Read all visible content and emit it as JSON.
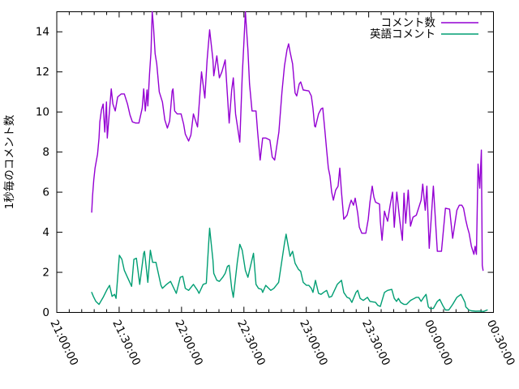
{
  "figure": {
    "background": "#ffffff",
    "border_color": "#000000",
    "text_color": "#000000"
  },
  "chart_data": {
    "type": "line",
    "title": "",
    "xlabel": "",
    "ylabel": "1秒毎のコメント数",
    "ylim": [
      0,
      15
    ],
    "yticks": [
      0,
      2,
      4,
      6,
      8,
      10,
      12,
      14
    ],
    "x_unit": "minutes_after_21:00:00",
    "xlim": [
      0,
      210
    ],
    "xticks": [
      {
        "t": 0,
        "label": "21:00:00"
      },
      {
        "t": 30,
        "label": "21:30:00"
      },
      {
        "t": 60,
        "label": "22:00:00"
      },
      {
        "t": 90,
        "label": "22:30:00"
      },
      {
        "t": 120,
        "label": "23:00:00"
      },
      {
        "t": 150,
        "label": "23:30:00"
      },
      {
        "t": 180,
        "label": "00:00:00"
      },
      {
        "t": 210,
        "label": "00:30:00"
      }
    ],
    "x_minor_tick_every": 6,
    "grid": false,
    "legend_position": "top-right-inside",
    "series": [
      {
        "name": "コメント数",
        "color": "#9400d3",
        "points": [
          [
            16.8,
            5.0
          ],
          [
            17.2,
            5.8
          ],
          [
            17.8,
            6.6
          ],
          [
            18.4,
            7.2
          ],
          [
            19.6,
            7.9
          ],
          [
            20.3,
            8.7
          ],
          [
            20.7,
            9.5
          ],
          [
            21.5,
            10.1
          ],
          [
            22.3,
            10.4
          ],
          [
            23.1,
            9.0
          ],
          [
            23.9,
            10.5
          ],
          [
            24.3,
            8.7
          ],
          [
            25.0,
            9.6
          ],
          [
            26.2,
            11.15
          ],
          [
            27.0,
            10.4
          ],
          [
            28.1,
            10.05
          ],
          [
            29.3,
            10.75
          ],
          [
            31.0,
            10.9
          ],
          [
            32.5,
            10.9
          ],
          [
            34.0,
            10.4
          ],
          [
            35.2,
            9.85
          ],
          [
            36.4,
            9.5
          ],
          [
            38.0,
            9.45
          ],
          [
            39.5,
            9.45
          ],
          [
            41.1,
            10.2
          ],
          [
            41.8,
            11.15
          ],
          [
            42.6,
            10.05
          ],
          [
            43.4,
            11.1
          ],
          [
            43.8,
            10.3
          ],
          [
            44.6,
            11.9
          ],
          [
            45.3,
            13.0
          ],
          [
            45.9,
            15.0
          ],
          [
            46.5,
            14.3
          ],
          [
            47.3,
            12.9
          ],
          [
            48.1,
            12.4
          ],
          [
            49.3,
            11.0
          ],
          [
            50.8,
            10.5
          ],
          [
            52.0,
            9.6
          ],
          [
            53.2,
            9.2
          ],
          [
            54.3,
            9.55
          ],
          [
            55.5,
            11.05
          ],
          [
            55.9,
            11.15
          ],
          [
            56.7,
            10.05
          ],
          [
            57.9,
            9.9
          ],
          [
            59.8,
            9.9
          ],
          [
            61.0,
            9.4
          ],
          [
            61.8,
            8.9
          ],
          [
            63.4,
            8.55
          ],
          [
            64.5,
            8.85
          ],
          [
            65.7,
            9.9
          ],
          [
            67.7,
            9.25
          ],
          [
            69.6,
            12.0
          ],
          [
            71.2,
            10.7
          ],
          [
            72.3,
            12.6
          ],
          [
            73.5,
            14.1
          ],
          [
            75.1,
            12.6
          ],
          [
            75.5,
            11.8
          ],
          [
            77.0,
            12.8
          ],
          [
            78.2,
            11.7
          ],
          [
            79.4,
            12.0
          ],
          [
            81.0,
            12.6
          ],
          [
            82.9,
            9.45
          ],
          [
            84.1,
            11.1
          ],
          [
            84.9,
            11.7
          ],
          [
            86.0,
            9.9
          ],
          [
            88.0,
            8.5
          ],
          [
            89.2,
            11.8
          ],
          [
            90.0,
            13.5
          ],
          [
            90.7,
            15.0
          ],
          [
            91.9,
            13.1
          ],
          [
            92.7,
            11.4
          ],
          [
            93.9,
            10.05
          ],
          [
            95.8,
            10.05
          ],
          [
            96.6,
            9.0
          ],
          [
            97.8,
            7.6
          ],
          [
            99.0,
            8.7
          ],
          [
            100.5,
            8.7
          ],
          [
            102.5,
            8.6
          ],
          [
            103.6,
            7.75
          ],
          [
            104.8,
            7.6
          ],
          [
            106.8,
            9.0
          ],
          [
            108.3,
            11.0
          ],
          [
            109.5,
            12.3
          ],
          [
            110.7,
            13.1
          ],
          [
            111.5,
            13.4
          ],
          [
            112.2,
            13.0
          ],
          [
            113.4,
            12.4
          ],
          [
            114.6,
            10.95
          ],
          [
            115.4,
            10.8
          ],
          [
            116.6,
            11.4
          ],
          [
            117.3,
            11.5
          ],
          [
            118.5,
            11.1
          ],
          [
            121.2,
            11.05
          ],
          [
            122.4,
            10.8
          ],
          [
            123.2,
            10.2
          ],
          [
            124.0,
            9.3
          ],
          [
            124.4,
            9.25
          ],
          [
            125.9,
            9.9
          ],
          [
            127.1,
            10.15
          ],
          [
            127.9,
            10.2
          ],
          [
            129.0,
            9.0
          ],
          [
            129.8,
            8.1
          ],
          [
            130.6,
            7.2
          ],
          [
            131.4,
            6.8
          ],
          [
            132.2,
            6.0
          ],
          [
            133.0,
            5.6
          ],
          [
            134.1,
            6.1
          ],
          [
            135.3,
            6.3
          ],
          [
            136.1,
            7.2
          ],
          [
            136.9,
            6.0
          ],
          [
            137.6,
            5.2
          ],
          [
            138.0,
            4.65
          ],
          [
            139.6,
            4.85
          ],
          [
            140.8,
            5.35
          ],
          [
            141.6,
            5.6
          ],
          [
            142.7,
            5.35
          ],
          [
            143.5,
            5.7
          ],
          [
            144.7,
            4.95
          ],
          [
            145.5,
            4.25
          ],
          [
            146.7,
            3.95
          ],
          [
            148.6,
            3.95
          ],
          [
            149.8,
            4.65
          ],
          [
            150.6,
            5.5
          ],
          [
            151.7,
            6.3
          ],
          [
            152.5,
            5.75
          ],
          [
            153.3,
            5.5
          ],
          [
            155.2,
            5.4
          ],
          [
            155.6,
            4.55
          ],
          [
            156.4,
            3.6
          ],
          [
            157.6,
            5.05
          ],
          [
            158.3,
            4.8
          ],
          [
            159.1,
            4.55
          ],
          [
            160.3,
            5.35
          ],
          [
            161.5,
            6.0
          ],
          [
            162.3,
            4.25
          ],
          [
            163.5,
            6.0
          ],
          [
            165.0,
            4.55
          ],
          [
            166.2,
            3.6
          ],
          [
            167.0,
            5.95
          ],
          [
            167.8,
            4.45
          ],
          [
            169.0,
            6.1
          ],
          [
            170.1,
            4.3
          ],
          [
            171.3,
            4.75
          ],
          [
            172.9,
            4.85
          ],
          [
            175.2,
            5.6
          ],
          [
            176.0,
            6.4
          ],
          [
            177.2,
            5.1
          ],
          [
            178.0,
            6.3
          ],
          [
            179.1,
            3.2
          ],
          [
            181.1,
            6.3
          ],
          [
            183.0,
            3.05
          ],
          [
            185.0,
            3.05
          ],
          [
            186.9,
            5.2
          ],
          [
            188.9,
            5.15
          ],
          [
            190.4,
            3.7
          ],
          [
            192.4,
            5.1
          ],
          [
            193.6,
            5.35
          ],
          [
            194.8,
            5.35
          ],
          [
            195.6,
            5.2
          ],
          [
            196.7,
            4.6
          ],
          [
            197.5,
            4.25
          ],
          [
            198.3,
            3.95
          ],
          [
            199.4,
            3.3
          ],
          [
            200.6,
            2.9
          ],
          [
            201.2,
            3.3
          ],
          [
            201.8,
            2.9
          ],
          [
            202.6,
            7.4
          ],
          [
            203.4,
            6.2
          ],
          [
            204.2,
            8.1
          ],
          [
            204.6,
            2.35
          ],
          [
            205.0,
            2.1
          ]
        ]
      },
      {
        "name": "英語コメント",
        "color": "#009e73",
        "points": [
          [
            16.8,
            1.0
          ],
          [
            17.6,
            0.8
          ],
          [
            18.8,
            0.55
          ],
          [
            20.3,
            0.4
          ],
          [
            22.3,
            0.75
          ],
          [
            24.2,
            1.15
          ],
          [
            25.4,
            1.35
          ],
          [
            26.6,
            0.8
          ],
          [
            27.8,
            0.9
          ],
          [
            28.5,
            0.7
          ],
          [
            30.1,
            2.85
          ],
          [
            31.3,
            2.65
          ],
          [
            32.5,
            2.1
          ],
          [
            34.0,
            1.75
          ],
          [
            36.0,
            1.3
          ],
          [
            37.1,
            2.65
          ],
          [
            38.3,
            2.7
          ],
          [
            39.9,
            1.4
          ],
          [
            41.8,
            2.95
          ],
          [
            42.2,
            3.05
          ],
          [
            43.8,
            1.5
          ],
          [
            45.0,
            3.1
          ],
          [
            46.1,
            2.5
          ],
          [
            47.7,
            2.5
          ],
          [
            50.1,
            1.35
          ],
          [
            50.8,
            1.2
          ],
          [
            52.8,
            1.4
          ],
          [
            54.7,
            1.55
          ],
          [
            57.5,
            0.95
          ],
          [
            59.4,
            1.75
          ],
          [
            60.6,
            1.8
          ],
          [
            61.8,
            1.2
          ],
          [
            63.4,
            1.1
          ],
          [
            65.7,
            1.4
          ],
          [
            67.7,
            1.1
          ],
          [
            68.4,
            0.95
          ],
          [
            70.4,
            1.4
          ],
          [
            71.9,
            1.45
          ],
          [
            73.1,
            3.5
          ],
          [
            73.5,
            4.2
          ],
          [
            75.1,
            2.6
          ],
          [
            75.5,
            1.95
          ],
          [
            77.0,
            1.6
          ],
          [
            78.2,
            1.55
          ],
          [
            79.8,
            1.75
          ],
          [
            81.0,
            1.95
          ],
          [
            82.1,
            2.3
          ],
          [
            82.9,
            2.35
          ],
          [
            84.1,
            1.2
          ],
          [
            84.9,
            0.75
          ],
          [
            86.8,
            2.5
          ],
          [
            88.0,
            3.4
          ],
          [
            89.2,
            3.1
          ],
          [
            90.7,
            2.1
          ],
          [
            91.9,
            1.75
          ],
          [
            94.6,
            2.95
          ],
          [
            95.8,
            1.4
          ],
          [
            97.0,
            1.2
          ],
          [
            98.5,
            1.15
          ],
          [
            99.0,
            1.0
          ],
          [
            100.5,
            1.35
          ],
          [
            102.9,
            1.1
          ],
          [
            104.4,
            1.2
          ],
          [
            106.7,
            1.5
          ],
          [
            109.5,
            3.45
          ],
          [
            110.3,
            3.9
          ],
          [
            111.5,
            3.2
          ],
          [
            112.2,
            2.8
          ],
          [
            113.4,
            3.05
          ],
          [
            114.6,
            2.45
          ],
          [
            116.2,
            2.15
          ],
          [
            117.3,
            2.05
          ],
          [
            118.5,
            1.5
          ],
          [
            120.1,
            1.35
          ],
          [
            121.2,
            1.35
          ],
          [
            122.4,
            1.2
          ],
          [
            123.2,
            1.0
          ],
          [
            124.4,
            1.6
          ],
          [
            125.9,
            0.95
          ],
          [
            127.1,
            0.9
          ],
          [
            128.3,
            1.0
          ],
          [
            129.8,
            1.1
          ],
          [
            131.0,
            0.75
          ],
          [
            132.2,
            0.8
          ],
          [
            134.9,
            1.4
          ],
          [
            136.9,
            1.6
          ],
          [
            138.0,
            1.0
          ],
          [
            139.6,
            0.75
          ],
          [
            140.8,
            0.7
          ],
          [
            141.9,
            0.5
          ],
          [
            143.9,
            1.0
          ],
          [
            144.7,
            1.1
          ],
          [
            145.9,
            0.7
          ],
          [
            147.4,
            0.6
          ],
          [
            149.4,
            0.75
          ],
          [
            150.6,
            0.55
          ],
          [
            153.3,
            0.5
          ],
          [
            154.4,
            0.35
          ],
          [
            155.6,
            0.3
          ],
          [
            157.6,
            1.0
          ],
          [
            159.1,
            1.1
          ],
          [
            161.1,
            1.15
          ],
          [
            162.3,
            0.7
          ],
          [
            163.4,
            0.55
          ],
          [
            164.3,
            0.7
          ],
          [
            165.4,
            0.5
          ],
          [
            167.0,
            0.4
          ],
          [
            168.2,
            0.4
          ],
          [
            170.1,
            0.6
          ],
          [
            172.9,
            0.75
          ],
          [
            174.0,
            0.75
          ],
          [
            175.2,
            0.55
          ],
          [
            176.4,
            0.74
          ],
          [
            177.6,
            0.9
          ],
          [
            178.7,
            0.28
          ],
          [
            179.5,
            0.2
          ],
          [
            181.1,
            0.2
          ],
          [
            183.0,
            0.55
          ],
          [
            184.2,
            0.65
          ],
          [
            185.7,
            0.33
          ],
          [
            186.9,
            0.12
          ],
          [
            188.5,
            0.12
          ],
          [
            190.4,
            0.4
          ],
          [
            192.4,
            0.75
          ],
          [
            194.4,
            0.9
          ],
          [
            196.3,
            0.5
          ],
          [
            196.7,
            0.28
          ],
          [
            198.2,
            0.12
          ],
          [
            199.4,
            0.08
          ],
          [
            201.4,
            0.06
          ],
          [
            203.4,
            0.07
          ],
          [
            205.3,
            0.05
          ],
          [
            207.0,
            0.12
          ]
        ]
      }
    ]
  }
}
